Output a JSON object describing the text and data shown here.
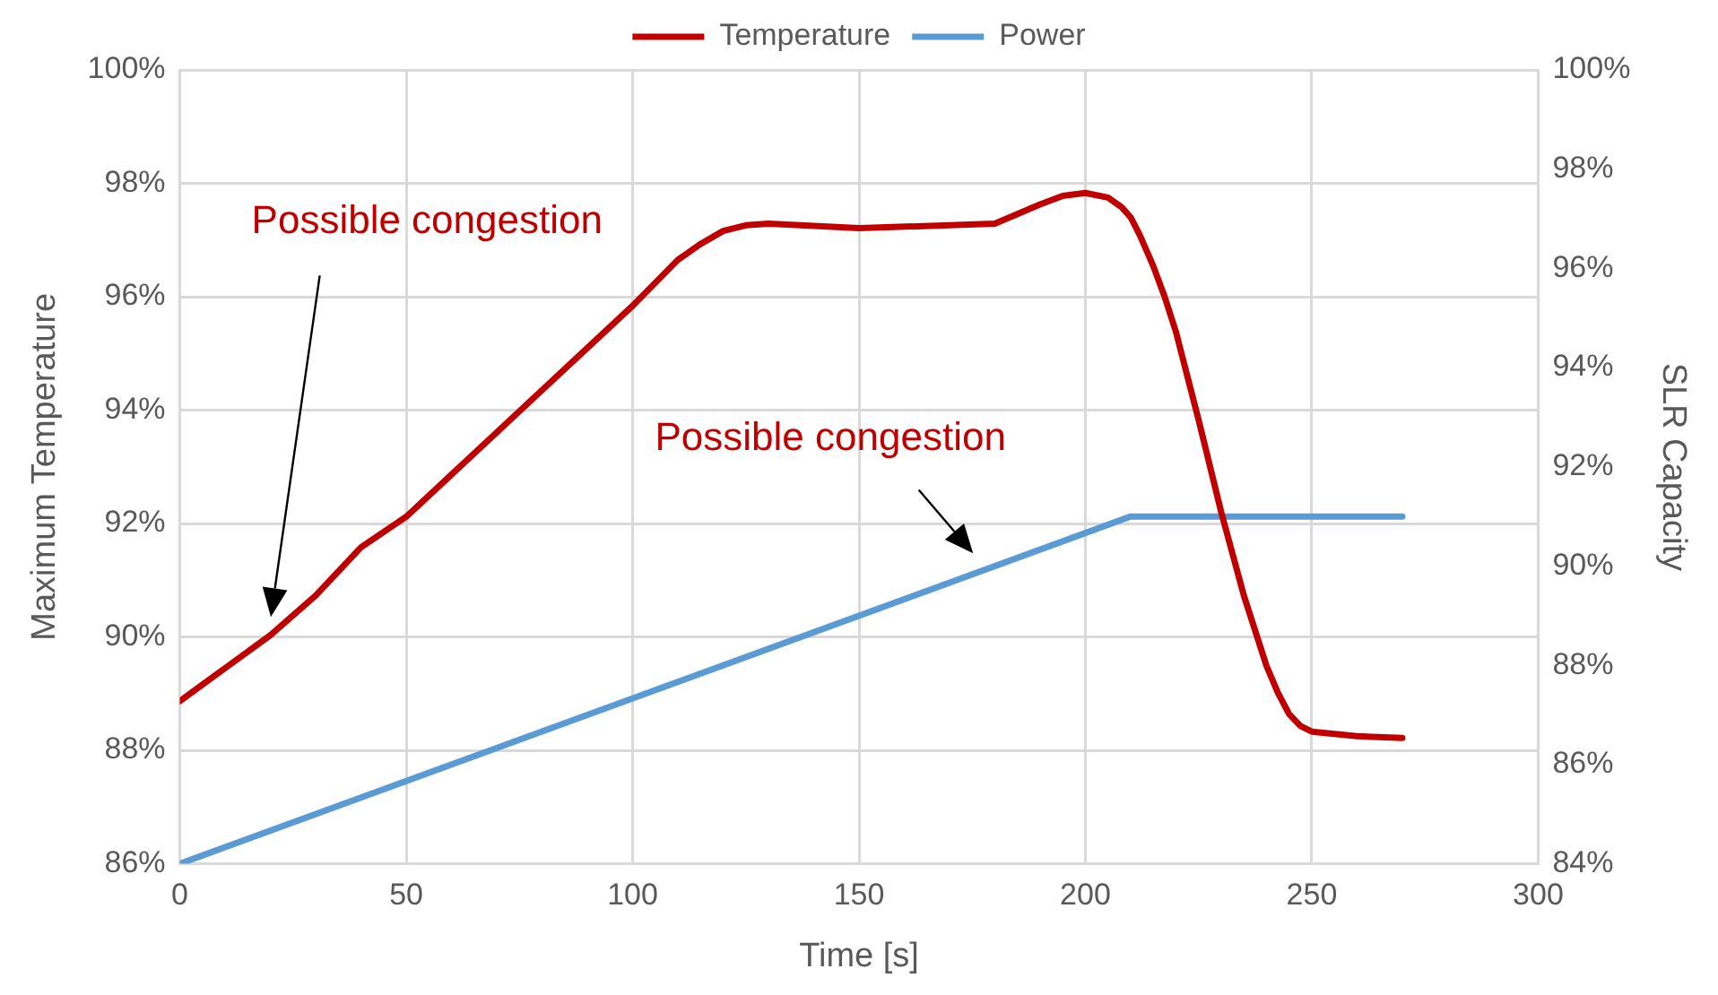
{
  "chart_data": {
    "type": "line",
    "xlabel": "Time [s]",
    "ylabel": "Maximum Temperature",
    "y2label": "SLR Capacity",
    "series": [
      {
        "name": "Temperature",
        "color": "#c00000",
        "x": [
          0,
          20,
          30,
          40,
          50,
          75,
          100,
          110,
          115,
          120,
          125,
          130,
          150,
          170,
          180,
          190,
          195,
          200,
          205,
          208,
          210,
          212,
          215,
          217.5,
          220,
          225,
          230,
          235,
          240,
          242.5,
          245,
          247.5,
          250,
          260,
          270
        ],
        "values": [
          88.87,
          90.03,
          90.73,
          91.58,
          92.12,
          93.98,
          95.84,
          96.65,
          96.93,
          97.16,
          97.26,
          97.29,
          97.21,
          97.26,
          97.29,
          97.63,
          97.78,
          97.83,
          97.75,
          97.58,
          97.4,
          97.09,
          96.54,
          96.0,
          95.38,
          93.83,
          92.2,
          90.73,
          89.49,
          89.02,
          88.64,
          88.43,
          88.33,
          88.25,
          88.22
        ]
      },
      {
        "name": "Power",
        "color": "#5b9bd5",
        "axis": "y2",
        "x": [
          0,
          210,
          270
        ],
        "values": [
          84.0,
          91.0,
          91.0
        ]
      }
    ],
    "xlim": [
      0,
      300
    ],
    "xticks": [
      0,
      50,
      100,
      150,
      200,
      250,
      300
    ],
    "ylim": [
      86,
      100
    ],
    "yticks": [
      {
        "value": 86,
        "label": "86%"
      },
      {
        "value": 88,
        "label": "88%"
      },
      {
        "value": 90,
        "label": "90%"
      },
      {
        "value": 92,
        "label": "92%"
      },
      {
        "value": 94,
        "label": "94%"
      },
      {
        "value": 96,
        "label": "96%"
      },
      {
        "value": 98,
        "label": "98%"
      },
      {
        "value": 100,
        "label": "100%"
      }
    ],
    "y2lim": [
      84,
      100
    ],
    "y2ticks": [
      {
        "value": 84,
        "label": "84%"
      },
      {
        "value": 86,
        "label": "86%"
      },
      {
        "value": 88,
        "label": "88%"
      },
      {
        "value": 90,
        "label": "90%"
      },
      {
        "value": 92,
        "label": "92%"
      },
      {
        "value": 94,
        "label": "94%"
      },
      {
        "value": 96,
        "label": "96%"
      },
      {
        "value": 98,
        "label": "98%"
      },
      {
        "value": 100,
        "label": "100%"
      }
    ],
    "annotations": [
      "Possible congestion",
      "Possible congestion"
    ],
    "grid": true,
    "legend": "top",
    "marker": "none",
    "line_style": "solid"
  }
}
